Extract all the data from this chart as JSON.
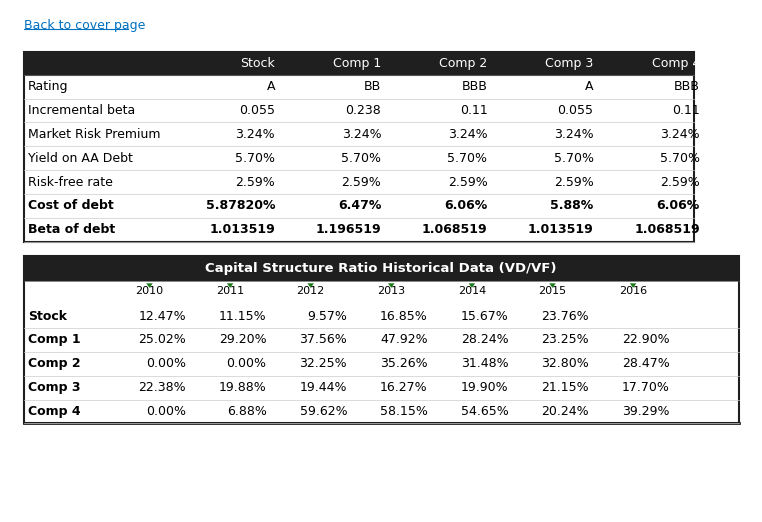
{
  "link_text": "Back to cover page",
  "link_color": "#0070C0",
  "table1": {
    "header_bg": "#1F1F1F",
    "header_fg": "#FFFFFF",
    "header_cols": [
      "",
      "Stock",
      "Comp 1",
      "Comp 2",
      "Comp 3",
      "Comp 4"
    ],
    "rows": [
      [
        "Rating",
        "A",
        "BB",
        "BBB",
        "A",
        "BBB"
      ],
      [
        "Incremental beta",
        "0.055",
        "0.238",
        "0.11",
        "0.055",
        "0.11"
      ],
      [
        "Market Risk Premium",
        "3.24%",
        "3.24%",
        "3.24%",
        "3.24%",
        "3.24%"
      ],
      [
        "Yield on AA Debt",
        "5.70%",
        "5.70%",
        "5.70%",
        "5.70%",
        "5.70%"
      ],
      [
        "Risk-free rate",
        "2.59%",
        "2.59%",
        "2.59%",
        "2.59%",
        "2.59%"
      ],
      [
        "Cost of debt",
        "5.87820%",
        "6.47%",
        "6.06%",
        "5.88%",
        "6.06%"
      ],
      [
        "Beta of debt",
        "1.013519",
        "1.196519",
        "1.068519",
        "1.013519",
        "1.068519"
      ]
    ],
    "bold_rows": [
      5,
      6
    ],
    "border_color": "#1F1F1F"
  },
  "table2": {
    "title": "Capital Structure Ratio Historical Data (VD/VF)",
    "title_bg": "#1F1F1F",
    "title_fg": "#FFFFFF",
    "header_cols": [
      "",
      "2010",
      "2011",
      "2012",
      "2013",
      "2014",
      "2015",
      "2016"
    ],
    "rows": [
      [
        "Stock",
        "12.47%",
        "11.15%",
        "9.57%",
        "16.85%",
        "15.67%",
        "23.76%",
        ""
      ],
      [
        "Comp 1",
        "25.02%",
        "29.20%",
        "37.56%",
        "47.92%",
        "28.24%",
        "23.25%",
        "22.90%"
      ],
      [
        "Comp 2",
        "0.00%",
        "0.00%",
        "32.25%",
        "35.26%",
        "31.48%",
        "32.80%",
        "28.47%"
      ],
      [
        "Comp 3",
        "22.38%",
        "19.88%",
        "19.44%",
        "16.27%",
        "19.90%",
        "21.15%",
        "17.70%"
      ],
      [
        "Comp 4",
        "0.00%",
        "6.88%",
        "59.62%",
        "58.15%",
        "54.65%",
        "20.24%",
        "39.29%"
      ]
    ],
    "border_color": "#1F1F1F",
    "arrow_color": "#1A7A1A"
  }
}
